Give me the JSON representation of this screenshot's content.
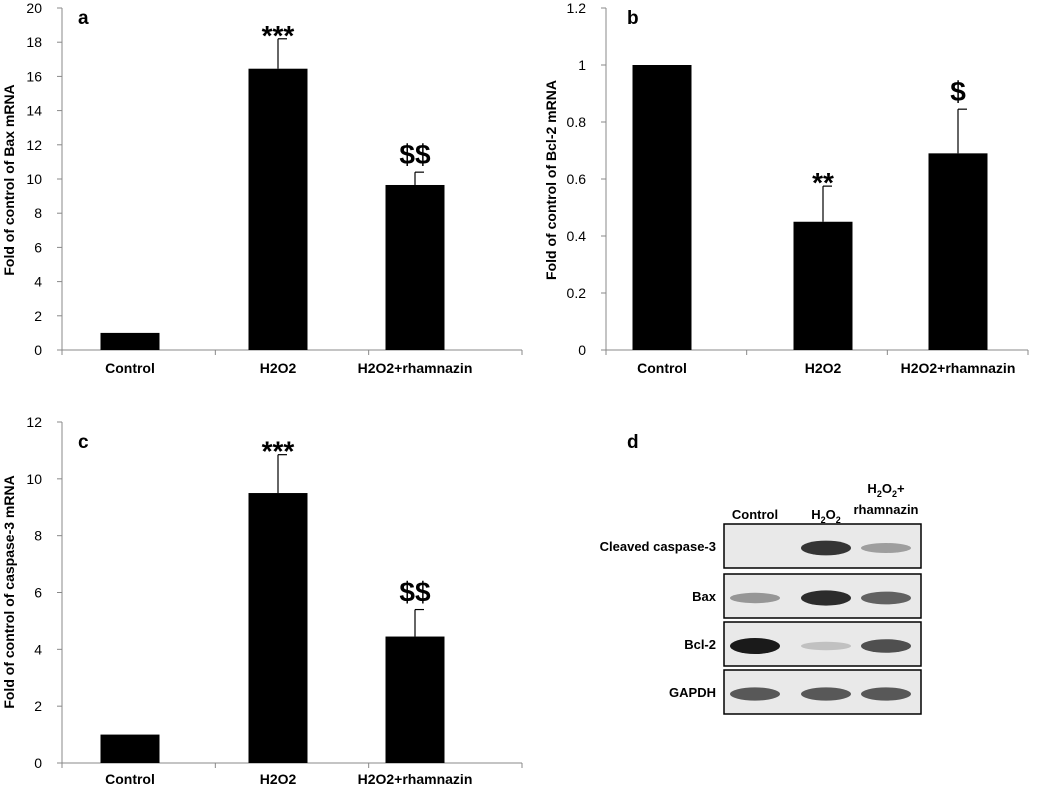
{
  "chart_data": [
    {
      "panel": "a",
      "type": "bar",
      "ylabel": "Fold of control of  Bax mRNA",
      "categories": [
        "Control",
        "H2O2",
        "H2O2+rhamnazin"
      ],
      "values": [
        1,
        16.45,
        9.65
      ],
      "errors": [
        0,
        1.75,
        0.75
      ],
      "significance": [
        "",
        "***",
        "$$"
      ],
      "ylim": [
        0,
        20
      ],
      "yticks": [
        "0",
        "2",
        "4",
        "6",
        "8",
        "10",
        "12",
        "14",
        "16",
        "18",
        "20"
      ]
    },
    {
      "panel": "b",
      "type": "bar",
      "ylabel": "Fold of control of  Bcl-2 mRNA",
      "categories": [
        "Control",
        "H2O2",
        "H2O2+rhamnazin"
      ],
      "values": [
        1,
        0.45,
        0.69
      ],
      "errors": [
        0,
        0.125,
        0.155
      ],
      "significance": [
        "",
        "**",
        "$"
      ],
      "ylim": [
        0,
        1.2
      ],
      "yticks": [
        "0",
        "0.2",
        "0.4",
        "0.6",
        "0.8",
        "1",
        "1.2"
      ]
    },
    {
      "panel": "c",
      "type": "bar",
      "ylabel": "Fold of control of  caspase-3 mRNA",
      "categories": [
        "Control",
        "H2O2",
        "H2O2+rhamnazin"
      ],
      "values": [
        1,
        9.5,
        4.45
      ],
      "errors": [
        0,
        1.35,
        0.95
      ],
      "significance": [
        "",
        "***",
        "$$"
      ],
      "ylim": [
        0,
        12
      ],
      "yticks": [
        "0",
        "2",
        "4",
        "6",
        "8",
        "10",
        "12"
      ]
    }
  ],
  "blot": {
    "panel": "d",
    "columns": [
      "Control",
      "H",
      "2",
      "O",
      "2",
      "H",
      "2",
      "O",
      "2",
      "+",
      "rhamnazin"
    ],
    "col_control": "Control",
    "col_h2o2": {
      "h": "H",
      "s1": "2",
      "o": "O",
      "s2": "2"
    },
    "col_h2o2_rham": {
      "h": "H",
      "s1": "2",
      "o": "O",
      "s2": "2",
      "plus": "+",
      "rham": "rhamnazin"
    },
    "rows": [
      {
        "label": "Cleaved caspase-3",
        "bands": [
          0.0,
          0.85,
          0.25
        ]
      },
      {
        "label": "Bax",
        "bands": [
          0.3,
          0.9,
          0.6
        ]
      },
      {
        "label": "Bcl-2",
        "bands": [
          1.0,
          0.05,
          0.7
        ]
      },
      {
        "label": "GAPDH",
        "bands": [
          0.65,
          0.65,
          0.65
        ]
      }
    ]
  },
  "colors": {
    "bar": "#000000",
    "blot_bg": "#e9e9e9",
    "band": "#1a1a1a"
  }
}
